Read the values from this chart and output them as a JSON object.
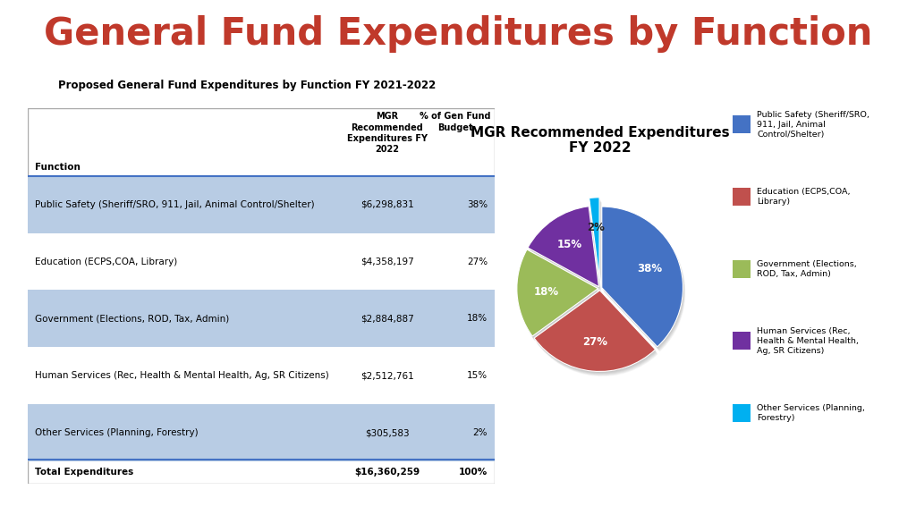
{
  "title": "General Fund Expenditures by Function",
  "title_color": "#c0392b",
  "table_title": "Proposed General Fund Expenditures by Function FY 2021-2022",
  "rows": [
    [
      "Public Safety (Sheriff/SRO, 911, Jail, Animal Control/Shelter)",
      "$6,298,831",
      "38%"
    ],
    [
      "Education (ECPS,COA, Library)",
      "$4,358,197",
      "27%"
    ],
    [
      "Government (Elections, ROD, Tax, Admin)",
      "$2,884,887",
      "18%"
    ],
    [
      "Human Services (Rec, Health & Mental Health, Ag, SR Citizens)",
      "$2,512,761",
      "15%"
    ],
    [
      "Other Services (Planning, Forestry)",
      "$305,583",
      "2%"
    ]
  ],
  "total_row": [
    "Total Expenditures",
    "$16,360,259",
    "100%"
  ],
  "row_colors": [
    "#b8cce4",
    "#ffffff",
    "#b8cce4",
    "#ffffff",
    "#b8cce4"
  ],
  "pie_title": "MGR Recommended Expenditures\nFY 2022",
  "pie_values": [
    38,
    27,
    18,
    15,
    2
  ],
  "pie_labels": [
    "38%",
    "27%",
    "18%",
    "15%",
    "2%"
  ],
  "pie_colors": [
    "#4472c4",
    "#c0504d",
    "#9bbb59",
    "#7030a0",
    "#00b0f0"
  ],
  "pie_legend_labels": [
    "Public Safety (Sheriff/SRO,\n911, Jail, Animal\nControl/Shelter)",
    "Education (ECPS,COA,\nLibrary)",
    "Government (Elections,\nROD, Tax, Admin)",
    "Human Services (Rec,\nHealth & Mental Health,\nAg, SR Citizens)",
    "Other Services (Planning,\nForestry)"
  ],
  "pie_explode": [
    0.02,
    0.02,
    0.02,
    0.02,
    0.1
  ],
  "background_color": "#ffffff"
}
